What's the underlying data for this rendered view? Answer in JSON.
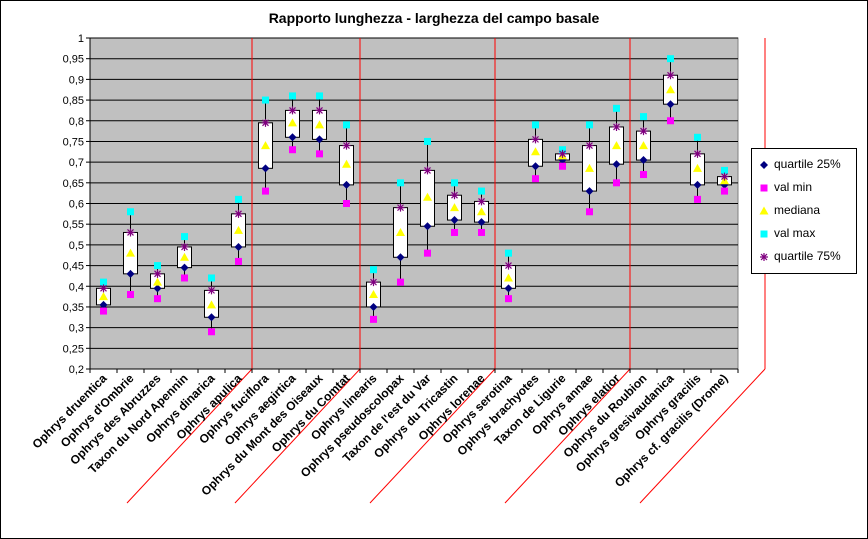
{
  "chart_data": {
    "type": "box",
    "title": "Rapporto lunghezza - larghezza del campo basale",
    "xlabel": "",
    "ylabel": "",
    "ylim": [
      0.2,
      1.0
    ],
    "yticks": [
      0.2,
      0.25,
      0.3,
      0.35,
      0.4,
      0.45,
      0.5,
      0.55,
      0.6,
      0.65,
      0.7,
      0.75,
      0.8,
      0.85,
      0.9,
      0.95,
      1.0
    ],
    "ytick_labels": [
      "0,2",
      "0,25",
      "0,3",
      "0,35",
      "0,4",
      "0,45",
      "0,5",
      "0,55",
      "0,6",
      "0,65",
      "0,7",
      "0,75",
      "0,8",
      "0,85",
      "0,9",
      "0,95",
      "1"
    ],
    "grid": true,
    "group_separators_after": [
      6,
      10,
      15,
      20,
      25
    ],
    "categories": [
      "Ophrys druentica",
      "Ophrys d'Ombrie",
      "Ophrys des Abruzzes",
      "Taxon du Nord Apennin",
      "Ophrys dinarica",
      "Ophrys apulica",
      "Ophrys fuciflora",
      "Ophrys aegirtica",
      "Ophrys du Mont des Oiseaux",
      "Ophrys du Comtat",
      "Ophrys linearis",
      "Ophrys pseudoscolopax",
      "Taxon de l'est du Var",
      "Ophrys du Tricastin",
      "Ophrys lorenae",
      "Ophrys serotina",
      "Ophrys brachyotes",
      "Taxon de Ligurie",
      "Ophrys annae",
      "Ophrys elatior",
      "Ophrys du Roubion",
      "Ophrys gresivaudanica",
      "Ophrys gracilis",
      "Ophrys cf. gracilis (Drome)"
    ],
    "series": [
      {
        "name": "quartile 25%",
        "marker": "diamond",
        "color": "#000080",
        "values": [
          0.355,
          0.43,
          0.395,
          0.445,
          0.325,
          0.495,
          0.685,
          0.76,
          0.755,
          0.645,
          0.35,
          0.47,
          0.545,
          0.56,
          0.555,
          0.395,
          0.69,
          0.705,
          0.63,
          0.695,
          0.705,
          0.84,
          0.645,
          0.645
        ]
      },
      {
        "name": "val min",
        "marker": "square",
        "color": "#ff00ff",
        "values": [
          0.34,
          0.38,
          0.37,
          0.42,
          0.29,
          0.46,
          0.63,
          0.73,
          0.72,
          0.6,
          0.32,
          0.41,
          0.48,
          0.53,
          0.53,
          0.37,
          0.66,
          0.69,
          0.58,
          0.65,
          0.67,
          0.8,
          0.61,
          0.63
        ]
      },
      {
        "name": "mediana",
        "marker": "triangle",
        "color": "#ffff00",
        "values": [
          0.375,
          0.48,
          0.41,
          0.47,
          0.355,
          0.535,
          0.74,
          0.795,
          0.79,
          0.695,
          0.38,
          0.53,
          0.615,
          0.59,
          0.58,
          0.42,
          0.725,
          0.715,
          0.685,
          0.74,
          0.74,
          0.875,
          0.685,
          0.655
        ]
      },
      {
        "name": "val max",
        "marker": "square",
        "color": "#00ffff",
        "values": [
          0.41,
          0.58,
          0.45,
          0.52,
          0.42,
          0.61,
          0.85,
          0.86,
          0.86,
          0.79,
          0.44,
          0.65,
          0.75,
          0.65,
          0.63,
          0.48,
          0.79,
          0.73,
          0.79,
          0.83,
          0.81,
          0.95,
          0.76,
          0.68
        ]
      },
      {
        "name": "quartile 75%",
        "marker": "star",
        "color": "#800080",
        "values": [
          0.395,
          0.53,
          0.43,
          0.495,
          0.39,
          0.575,
          0.795,
          0.825,
          0.825,
          0.74,
          0.41,
          0.59,
          0.68,
          0.62,
          0.605,
          0.45,
          0.755,
          0.72,
          0.74,
          0.785,
          0.775,
          0.91,
          0.72,
          0.665
        ]
      }
    ]
  }
}
